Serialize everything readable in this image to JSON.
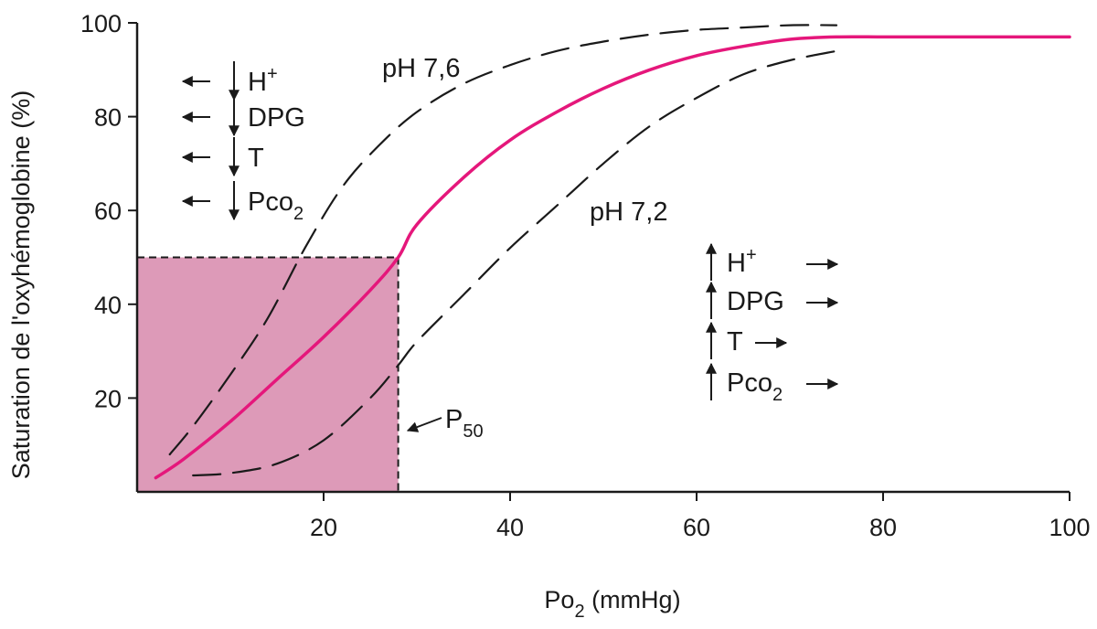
{
  "chart_data": {
    "type": "line",
    "title": "",
    "xlabel": {
      "main": "Po",
      "sub": "2",
      "rest": " (mmHg)"
    },
    "ylabel": "Saturation de l'oxyhémoglobine (%)",
    "xlim": [
      0,
      100
    ],
    "ylim": [
      0,
      100
    ],
    "x_ticks": [
      20,
      40,
      60,
      80,
      100
    ],
    "y_ticks": [
      20,
      40,
      60,
      80,
      100
    ],
    "grid": false,
    "colors": {
      "normal": "#e5177b",
      "shade": "#dd9ab8",
      "axis": "#1a1a1a"
    },
    "series": [
      {
        "name": "",
        "style": "solid",
        "color": "#e5177b",
        "x": [
          2,
          5,
          10,
          15,
          20,
          25,
          28,
          30,
          35,
          40,
          45,
          50,
          55,
          60,
          65,
          70,
          75,
          80,
          85,
          90,
          95,
          100
        ],
        "y": [
          3,
          7,
          15,
          24,
          33,
          43,
          50,
          57,
          67,
          75,
          81,
          86,
          90,
          93,
          95,
          96.5,
          97,
          97,
          97,
          97,
          97,
          97
        ]
      },
      {
        "name": "pH 7,6",
        "style": "dashed",
        "color": "#1a1a1a",
        "x": [
          3.5,
          6,
          10,
          14,
          18,
          22,
          26,
          30,
          35,
          40,
          45,
          50,
          55,
          60,
          65,
          70,
          75
        ],
        "y": [
          8,
          14,
          25,
          37,
          52,
          65,
          74,
          81,
          87,
          91,
          94,
          96,
          97.5,
          98.5,
          99,
          99.5,
          99.5
        ]
      },
      {
        "name": "pH 7,2",
        "style": "dashed",
        "color": "#1a1a1a",
        "x": [
          6,
          10,
          15,
          20,
          25,
          28,
          30,
          35,
          40,
          45,
          50,
          55,
          60,
          65,
          70,
          75
        ],
        "y": [
          3.5,
          4,
          6,
          11,
          20,
          27,
          32,
          42,
          52,
          61,
          70,
          78,
          84,
          89,
          92,
          94
        ]
      }
    ],
    "p50": {
      "x": 28,
      "y": 50,
      "label_main": "P",
      "label_sub": "50"
    },
    "annotations": {
      "left_effects": [
        {
          "main": "H",
          "sup": "+",
          "sub": ""
        },
        {
          "main": "DPG",
          "sup": "",
          "sub": ""
        },
        {
          "main": "T",
          "sup": "",
          "sub": ""
        },
        {
          "main": "Pco",
          "sup": "",
          "sub": "2"
        }
      ],
      "right_effects": [
        {
          "main": "H",
          "sup": "+",
          "sub": ""
        },
        {
          "main": "DPG",
          "sup": "",
          "sub": ""
        },
        {
          "main": "T",
          "sup": "",
          "sub": ""
        },
        {
          "main": "Pco",
          "sup": "",
          "sub": "2"
        }
      ]
    }
  }
}
